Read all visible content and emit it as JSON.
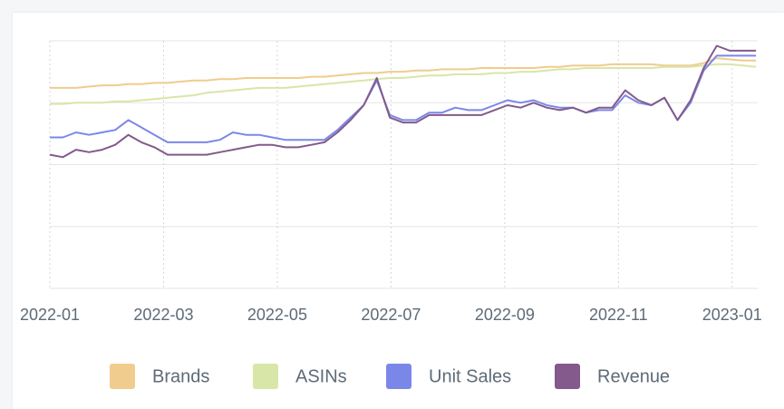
{
  "chart_data": {
    "type": "line",
    "x": [
      0,
      0.23,
      0.46,
      0.69,
      0.92,
      1.15,
      1.38,
      1.61,
      1.84,
      2.07,
      2.3,
      2.53,
      2.76,
      2.99,
      3.22,
      3.45,
      3.68,
      3.91,
      4.14,
      4.37,
      4.6,
      4.83,
      5.06,
      5.29,
      5.52,
      5.75,
      5.98,
      6.21,
      6.44,
      6.67,
      6.9,
      7.13,
      7.36,
      7.59,
      7.82,
      8.05,
      8.28,
      8.51,
      8.74,
      8.97,
      9.2,
      9.43,
      9.66,
      9.89,
      10.12,
      10.35,
      10.58,
      10.81,
      11.04,
      11.27,
      11.5,
      11.73,
      11.96,
      12.19,
      12.42
    ],
    "xlim": [
      0,
      12.45
    ],
    "xticks": [
      {
        "value": 0,
        "label": "2022-01"
      },
      {
        "value": 2,
        "label": "2022-03"
      },
      {
        "value": 4,
        "label": "2022-05"
      },
      {
        "value": 6,
        "label": "2022-07"
      },
      {
        "value": 8,
        "label": "2022-09"
      },
      {
        "value": 10,
        "label": "2022-11"
      },
      {
        "value": 12,
        "label": "2023-01"
      }
    ],
    "ylim": [
      0,
      100
    ],
    "yticks": [
      0,
      25,
      50,
      75,
      100
    ],
    "grid": true,
    "legend": "bottom",
    "series": [
      {
        "name": "Brands",
        "color": "#f0cc8e",
        "values": [
          81,
          81,
          81,
          81.5,
          82,
          82,
          82.5,
          82.5,
          83,
          83,
          83.5,
          84,
          84,
          84.5,
          84.5,
          85,
          85,
          85,
          85,
          85,
          85.5,
          85.5,
          86,
          86.5,
          87,
          87,
          87.5,
          87.5,
          88,
          88,
          88.5,
          88.5,
          88.5,
          89,
          89,
          89,
          89,
          89,
          89.5,
          89.5,
          90,
          90,
          90,
          90.5,
          90.5,
          90.5,
          90.5,
          90,
          90,
          90,
          91,
          93,
          92.5,
          92,
          92
        ]
      },
      {
        "name": "ASINs",
        "color": "#d8e6a8",
        "values": [
          74.5,
          74.5,
          75,
          75,
          75,
          75.5,
          75.5,
          76,
          76.5,
          77,
          77.5,
          78,
          79,
          79.5,
          80,
          80.5,
          81,
          81,
          81,
          81.5,
          82,
          82.5,
          83,
          83.5,
          84,
          84.5,
          85,
          85,
          85.5,
          86,
          86,
          86.5,
          86.5,
          86.5,
          87,
          87,
          87.5,
          87.5,
          88,
          88.5,
          88.5,
          89,
          89,
          89,
          89,
          89,
          89,
          89.5,
          89.5,
          89.5,
          90,
          90.5,
          90.5,
          90,
          89.5
        ]
      },
      {
        "name": "Unit Sales",
        "color": "#7b87e8",
        "values": [
          61,
          61,
          63,
          62,
          63,
          64,
          68,
          65,
          62,
          59,
          59,
          59,
          59,
          60,
          63,
          62,
          62,
          61,
          60,
          60,
          60,
          60,
          64,
          69,
          74,
          84,
          70,
          68,
          68,
          71,
          71,
          73,
          72,
          72,
          74,
          76,
          75,
          76,
          74,
          73,
          73,
          71,
          72,
          72,
          78,
          75,
          74,
          77,
          68,
          75,
          88,
          94,
          94,
          94,
          94
        ]
      },
      {
        "name": "Revenue",
        "color": "#835a8b",
        "values": [
          54,
          53,
          56,
          55,
          56,
          58,
          62,
          59,
          57,
          54,
          54,
          54,
          54,
          55,
          56,
          57,
          58,
          58,
          57,
          57,
          58,
          59,
          63,
          68,
          74,
          85,
          69,
          67,
          67,
          70,
          70,
          70,
          70,
          70,
          72,
          74,
          73,
          75,
          73,
          72,
          73,
          71,
          73,
          73,
          80,
          76,
          74,
          77,
          68,
          76,
          89,
          98,
          96,
          96,
          96
        ]
      }
    ]
  }
}
